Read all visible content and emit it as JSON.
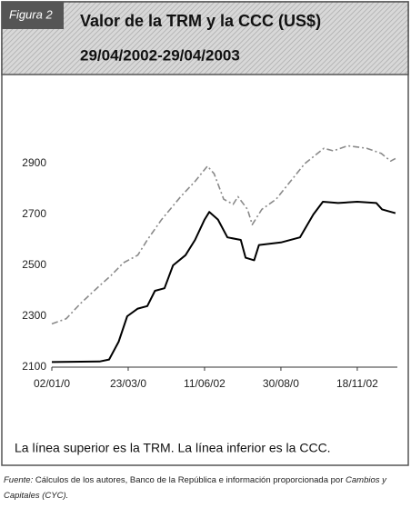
{
  "figure_label": "Figura 2",
  "chart_data": {
    "type": "line",
    "title": "Valor de la TRM y la CCC (US$)",
    "subtitle": "29/04/2002-29/04/2003",
    "series": [
      {
        "name": "TRM",
        "color": "#8a8a8a",
        "dashed": true,
        "x": [
          0,
          15,
          30,
          50,
          62,
          75,
          90,
          100,
          115,
          135,
          150,
          163,
          170,
          180,
          190,
          195,
          205,
          210,
          220,
          235,
          250,
          265,
          275,
          285,
          295,
          310,
          330,
          345,
          355,
          360
        ],
        "values": [
          2270,
          2290,
          2350,
          2420,
          2460,
          2510,
          2540,
          2600,
          2680,
          2770,
          2830,
          2890,
          2860,
          2760,
          2740,
          2770,
          2720,
          2660,
          2720,
          2760,
          2830,
          2900,
          2930,
          2960,
          2950,
          2970,
          2960,
          2940,
          2910,
          2920
        ]
      },
      {
        "name": "CCC",
        "color": "#000000",
        "dashed": false,
        "x": [
          0,
          50,
          60,
          70,
          79,
          90,
          100,
          108,
          118,
          127,
          140,
          150,
          160,
          165,
          174,
          184,
          198,
          203,
          212,
          217,
          240,
          260,
          274,
          284,
          300,
          320,
          340,
          346,
          360
        ],
        "values": [
          2120,
          2122,
          2130,
          2200,
          2300,
          2330,
          2340,
          2400,
          2410,
          2500,
          2540,
          2600,
          2680,
          2710,
          2680,
          2610,
          2600,
          2530,
          2520,
          2580,
          2590,
          2610,
          2700,
          2750,
          2745,
          2750,
          2745,
          2720,
          2705
        ]
      }
    ],
    "xlim": [
      0,
      362
    ],
    "xticks": [
      {
        "value": 0,
        "label": "02/01/0"
      },
      {
        "value": 80,
        "label": "23/03/0"
      },
      {
        "value": 160,
        "label": "11/06/02"
      },
      {
        "value": 240,
        "label": "30/08/0"
      },
      {
        "value": 320,
        "label": "18/11/02"
      }
    ],
    "ylim": [
      2100,
      3200
    ],
    "yticks": [
      2100,
      2300,
      2500,
      2700,
      2900
    ],
    "grid": false
  },
  "caption": "La línea superior es la TRM. La línea inferior es la CCC.",
  "source": [
    "Fuente:",
    " Cálculos de los autores, Banco de la República e información proporcionada por ",
    "Cambios y Capitales (CYC)."
  ]
}
